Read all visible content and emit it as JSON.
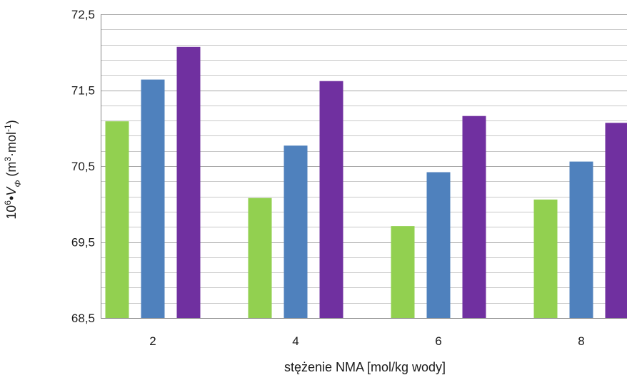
{
  "chart_data": {
    "type": "bar",
    "title": "",
    "xlabel": "stężenie NMA [mol/kg wody]",
    "ylabel": {
      "prefix": "10",
      "prefix_sup": "6",
      "dot": "•",
      "symbol": "V",
      "symbol_sub": "Φ",
      "unit_open": " (m",
      "unit_sup1": "3",
      "unit_mid": "·mol",
      "unit_sup2": "-1",
      "unit_close": ")"
    },
    "categories": [
      "2",
      "4",
      "6",
      "8"
    ],
    "ylim": [
      68.5,
      72.5
    ],
    "yticks": [
      "68,5",
      "69,5",
      "70,5",
      "71,5",
      "72,5"
    ],
    "ytick_values": [
      68.5,
      69.5,
      70.5,
      71.5,
      72.5
    ],
    "minor_grid_step": 0.2,
    "grid": true,
    "legend": "none",
    "series": [
      {
        "color": "#92d050",
        "values": [
          71.09,
          70.08,
          69.71,
          70.06
        ]
      },
      {
        "color": "#4f81bd",
        "values": [
          71.64,
          70.77,
          70.42,
          70.56
        ]
      },
      {
        "color": "#7030a0",
        "values": [
          72.07,
          71.62,
          71.16,
          71.07
        ]
      }
    ]
  }
}
